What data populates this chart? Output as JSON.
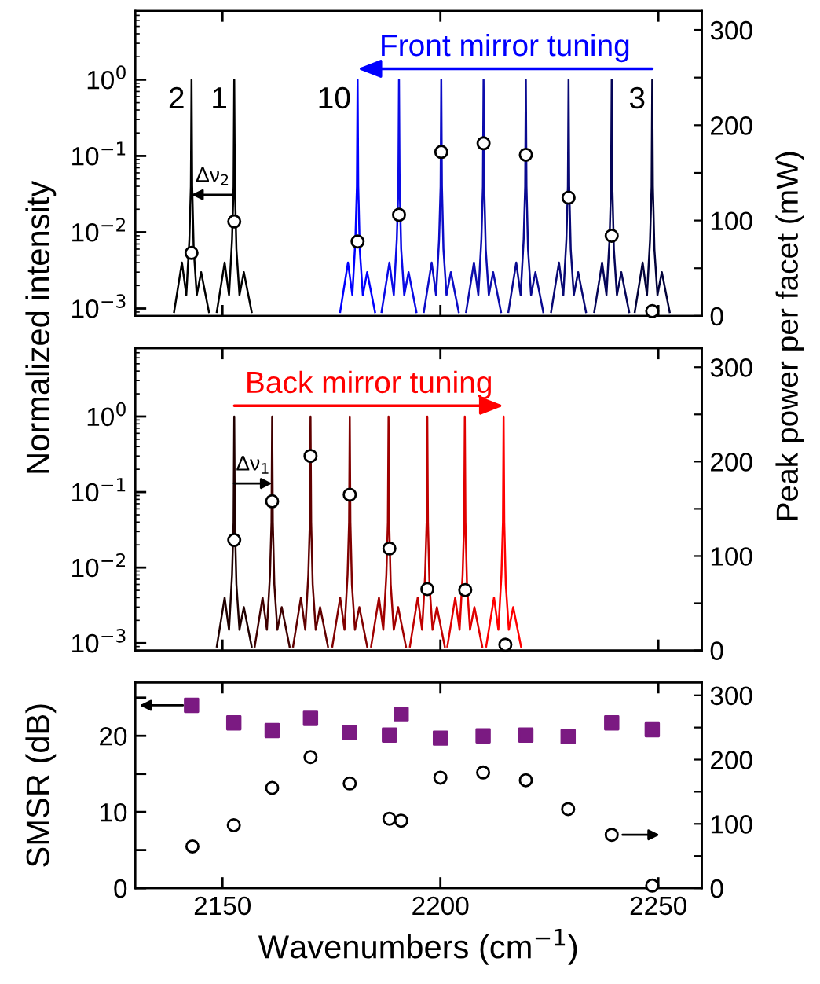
{
  "chart_data": [
    {
      "type": "line",
      "log": "y",
      "ylabel": "Normalized intensity",
      "xlim": [
        2130,
        2260
      ],
      "xticks": [
        2150,
        2200,
        2250
      ],
      "ylim": [
        0.0008,
        8
      ],
      "yticks": [
        {
          "value": 1,
          "label": "10$^{0}$"
        },
        {
          "value": 0.1,
          "label": "10$^{−1}$"
        },
        {
          "value": 0.01,
          "label": "10$^{−2}$"
        },
        {
          "value": 0.001,
          "label": "10$^{−3}$"
        }
      ],
      "y2lim": [
        0,
        320
      ],
      "y2ticks": [
        0,
        {
          "value": 50,
          "label": null
        },
        100,
        {
          "value": 150,
          "label": null
        },
        200,
        {
          "value": 250,
          "label": null
        },
        300
      ],
      "tick_labels": "y",
      "series": [
        {
          "color": "#000000",
          "x": [
            2138.9,
            2140.7,
            2141.7,
            2142.4,
            2142.75,
            2142.9,
            2143.05,
            2143.4,
            2144.1,
            2145.1,
            2146.9
          ],
          "values": [
            0.0009,
            0.004,
            0.0015,
            0.008,
            0.04,
            1,
            0.04,
            0.006,
            0.0015,
            0.003,
            0.0009
          ]
        },
        {
          "color": "#000000",
          "x": [
            2148.7,
            2150.5,
            2151.5,
            2152.2,
            2152.55,
            2152.7,
            2152.85,
            2153.2,
            2153.9,
            2154.9,
            2156.7
          ],
          "values": [
            0.0009,
            0.004,
            0.0015,
            0.008,
            0.04,
            1,
            0.04,
            0.006,
            0.0015,
            0.003,
            0.0009
          ]
        },
        {
          "color": "#0000ff",
          "x": [
            2177,
            2178.8,
            2179.8,
            2180.5,
            2180.85,
            2181,
            2181.15,
            2181.5,
            2182.2,
            2183.2,
            2185
          ],
          "values": [
            0.0009,
            0.004,
            0.0015,
            0.008,
            0.04,
            1,
            0.04,
            0.006,
            0.0015,
            0.003,
            0.0009
          ]
        },
        {
          "color": "#0a0ae6",
          "x": [
            2186.5,
            2188.3,
            2189.3,
            2190,
            2190.35,
            2190.5,
            2190.65,
            2191,
            2191.7,
            2192.7,
            2194.5
          ],
          "values": [
            0.0009,
            0.004,
            0.0015,
            0.008,
            0.04,
            1,
            0.04,
            0.006,
            0.0015,
            0.003,
            0.0009
          ]
        },
        {
          "color": "#0c0cc8",
          "x": [
            2196.2,
            2198,
            2199,
            2199.7,
            2200.05,
            2200.2,
            2200.35,
            2200.7,
            2201.4,
            2202.4,
            2204.2
          ],
          "values": [
            0.0009,
            0.004,
            0.0015,
            0.008,
            0.04,
            1,
            0.04,
            0.006,
            0.0015,
            0.003,
            0.0009
          ]
        },
        {
          "color": "#0c0cac",
          "x": [
            2205.9,
            2207.7,
            2208.7,
            2209.4,
            2209.75,
            2209.9,
            2210.05,
            2210.4,
            2211.1,
            2212.1,
            2213.9
          ],
          "values": [
            0.0009,
            0.004,
            0.0015,
            0.008,
            0.04,
            1,
            0.04,
            0.006,
            0.0015,
            0.003,
            0.0009
          ]
        },
        {
          "color": "#0a0a90",
          "x": [
            2215.6,
            2217.4,
            2218.4,
            2219.1,
            2219.45,
            2219.6,
            2219.75,
            2220.1,
            2220.8,
            2221.8,
            2223.6
          ],
          "values": [
            0.0009,
            0.004,
            0.0015,
            0.008,
            0.04,
            1,
            0.04,
            0.006,
            0.0015,
            0.003,
            0.0009
          ]
        },
        {
          "color": "#080874",
          "x": [
            2225.4,
            2227.2,
            2228.2,
            2228.9,
            2229.25,
            2229.4,
            2229.55,
            2229.9,
            2230.6,
            2231.6,
            2233.4
          ],
          "values": [
            0.0009,
            0.004,
            0.0015,
            0.008,
            0.04,
            1,
            0.04,
            0.006,
            0.0015,
            0.003,
            0.0009
          ]
        },
        {
          "color": "#050558",
          "x": [
            2235.3,
            2237.1,
            2238.1,
            2238.8,
            2239.15,
            2239.3,
            2239.45,
            2239.8,
            2240.5,
            2241.5,
            2243.3
          ],
          "values": [
            0.0009,
            0.004,
            0.0015,
            0.008,
            0.04,
            1,
            0.04,
            0.006,
            0.0015,
            0.003,
            0.0009
          ]
        },
        {
          "color": "#02023a",
          "x": [
            2244.6,
            2246.4,
            2247.4,
            2248.1,
            2248.45,
            2248.6,
            2248.75,
            2249.1,
            2249.8,
            2250.8,
            2252.6
          ],
          "values": [
            0.0009,
            0.004,
            0.0015,
            0.008,
            0.04,
            1,
            0.04,
            0.006,
            0.0015,
            0.003,
            0.0009
          ]
        },
        {
          "type": "scatter",
          "axis": "y2",
          "marker": "circle",
          "color": "#000000",
          "x": [
            2142.9,
            2152.7,
            2181.0,
            2190.5,
            2200.2,
            2209.9,
            2219.6,
            2229.4,
            2239.3,
            2248.6
          ],
          "values": [
            66,
            99,
            78,
            106,
            172,
            181,
            169,
            124,
            84,
            5
          ]
        }
      ],
      "annotations": [
        {
          "text": "2",
          "x": 2142.9,
          "y": 1
        },
        {
          "text": "1",
          "x": 2152.7,
          "y": 1
        },
        {
          "text": "10",
          "x": 2181.0,
          "y": 1
        },
        {
          "text": "3",
          "x": 2248.6,
          "y": 1
        },
        {
          "text": "Δν$_{2}$",
          "x": 2152.7,
          "y": 0.031
        },
        "Front mirror tuning"
      ]
    },
    {
      "type": "line",
      "log": "y",
      "y2label": "Peak power per facet (mW)",
      "xlim": [
        2130,
        2260
      ],
      "xticks": [
        2150,
        2200,
        2250
      ],
      "ylim": [
        0.0008,
        8
      ],
      "yticks": [
        {
          "value": 1,
          "label": "10$^{0}$"
        },
        {
          "value": 0.1,
          "label": "10$^{−1}$"
        },
        {
          "value": 0.01,
          "label": "10$^{−2}$"
        },
        {
          "value": 0.001,
          "label": "10$^{−3}$"
        }
      ],
      "y2lim": [
        0,
        320
      ],
      "y2ticks": [
        0,
        {
          "value": 50,
          "label": null
        },
        100,
        {
          "value": 150,
          "label": null
        },
        200,
        {
          "value": 250,
          "label": null
        },
        300
      ],
      "tick_labels": "y",
      "series": [
        {
          "color": "#200000",
          "x": [
            2148.7,
            2150.5,
            2151.5,
            2152.2,
            2152.55,
            2152.7,
            2152.85,
            2153.2,
            2153.9,
            2154.9,
            2156.7
          ],
          "values": [
            0.0009,
            0.004,
            0.0015,
            0.008,
            0.04,
            1,
            0.04,
            0.006,
            0.0015,
            0.003,
            0.0009
          ]
        },
        {
          "color": "#400000",
          "x": [
            2157.4,
            2159.2,
            2160.2,
            2160.9,
            2161.25,
            2161.4,
            2161.55,
            2161.9,
            2162.6,
            2163.6,
            2165.4
          ],
          "values": [
            0.0009,
            0.004,
            0.0015,
            0.008,
            0.04,
            1,
            0.04,
            0.006,
            0.0015,
            0.003,
            0.0009
          ]
        },
        {
          "color": "#600000",
          "x": [
            2166.2,
            2168,
            2169,
            2169.7,
            2170.05,
            2170.2,
            2170.35,
            2170.7,
            2171.4,
            2172.4,
            2174.2
          ],
          "values": [
            0.0009,
            0.004,
            0.0015,
            0.008,
            0.04,
            1,
            0.04,
            0.006,
            0.0015,
            0.003,
            0.0009
          ]
        },
        {
          "color": "#800000",
          "x": [
            2175.2,
            2177,
            2178,
            2178.7,
            2179.05,
            2179.2,
            2179.35,
            2179.7,
            2180.4,
            2181.4,
            2183.2
          ],
          "values": [
            0.0009,
            0.004,
            0.0015,
            0.008,
            0.04,
            1,
            0.04,
            0.006,
            0.0015,
            0.003,
            0.0009
          ]
        },
        {
          "color": "#a00000",
          "x": [
            2184.1,
            2185.9,
            2186.9,
            2187.6,
            2187.95,
            2188.1,
            2188.25,
            2188.6,
            2189.3,
            2190.3,
            2192.1
          ],
          "values": [
            0.0009,
            0.004,
            0.0015,
            0.008,
            0.04,
            1,
            0.04,
            0.006,
            0.0015,
            0.003,
            0.0009
          ]
        },
        {
          "color": "#c00000",
          "x": [
            2193,
            2194.8,
            2195.8,
            2196.5,
            2196.85,
            2197,
            2197.15,
            2197.5,
            2198.2,
            2199.2,
            2201
          ],
          "values": [
            0.0009,
            0.004,
            0.0015,
            0.008,
            0.04,
            1,
            0.04,
            0.006,
            0.0015,
            0.003,
            0.0009
          ]
        },
        {
          "color": "#e00000",
          "x": [
            2201.6,
            2203.4,
            2204.4,
            2205.1,
            2205.45,
            2205.6,
            2205.75,
            2206.1,
            2206.8,
            2207.8,
            2209.6
          ],
          "values": [
            0.0009,
            0.004,
            0.0015,
            0.008,
            0.04,
            1,
            0.04,
            0.006,
            0.0015,
            0.003,
            0.0009
          ]
        },
        {
          "color": "#ff0000",
          "x": [
            2210.5,
            2212.3,
            2213.3,
            2214,
            2214.35,
            2214.5,
            2214.65,
            2215,
            2215.7,
            2216.7,
            2218.5
          ],
          "values": [
            0.0009,
            0.004,
            0.0015,
            0.008,
            0.04,
            1,
            0.04,
            0.006,
            0.0015,
            0.003,
            0.0009
          ]
        },
        {
          "type": "scatter",
          "axis": "y2",
          "marker": "circle",
          "color": "#000000",
          "x": [
            2152.7,
            2161.4,
            2170.2,
            2179.2,
            2188.3,
            2197.0,
            2205.7,
            2214.9
          ],
          "values": [
            117,
            158,
            206,
            165,
            108,
            65,
            64,
            6
          ]
        }
      ],
      "annotations": [
        "Back mirror tuning",
        {
          "text": "Δν$_{1}$",
          "x": 2152.7,
          "y": 0.13
        }
      ]
    },
    {
      "type": "scatter",
      "ylabel": "SMSR (dB)",
      "xlabel": "Wavenumbers (cm$^{−1}$)",
      "xlim": [
        2130,
        2260
      ],
      "xticks": [
        2150,
        2200,
        2250
      ],
      "ylim": [
        0,
        27
      ],
      "yticks": [
        0,
        {
          "value": 5,
          "label": null
        },
        10,
        {
          "value": 15,
          "label": null
        },
        20,
        {
          "value": 25,
          "label": null
        }
      ],
      "y2lim": [
        0,
        320
      ],
      "y2ticks": [
        0,
        {
          "value": 50,
          "label": null
        },
        100,
        {
          "value": 150,
          "label": null
        },
        200,
        {
          "value": 250,
          "label": null
        },
        300
      ],
      "series": [
        {
          "marker": "square",
          "color": "#7b1a82",
          "x": [
            2142.9,
            2152.6,
            2161.4,
            2170.2,
            2179.2,
            2188.3,
            2191.0,
            2200.0,
            2209.8,
            2219.6,
            2229.3,
            2239.3,
            2248.6
          ],
          "values": [
            24.0,
            21.7,
            20.7,
            22.3,
            20.4,
            20.1,
            22.8,
            19.7,
            20.0,
            20.1,
            19.9,
            21.7,
            20.8
          ]
        },
        {
          "marker": "circle",
          "axis": "y2",
          "color": "#000000",
          "x": [
            2143.1,
            2152.6,
            2161.4,
            2170.2,
            2179.2,
            2188.3,
            2191.0,
            2200.0,
            2209.8,
            2219.6,
            2229.3,
            2239.3,
            2248.6
          ],
          "values": [
            65,
            98,
            156,
            204,
            163,
            108,
            105,
            172,
            180,
            168,
            123,
            83,
            4
          ]
        }
      ]
    }
  ]
}
